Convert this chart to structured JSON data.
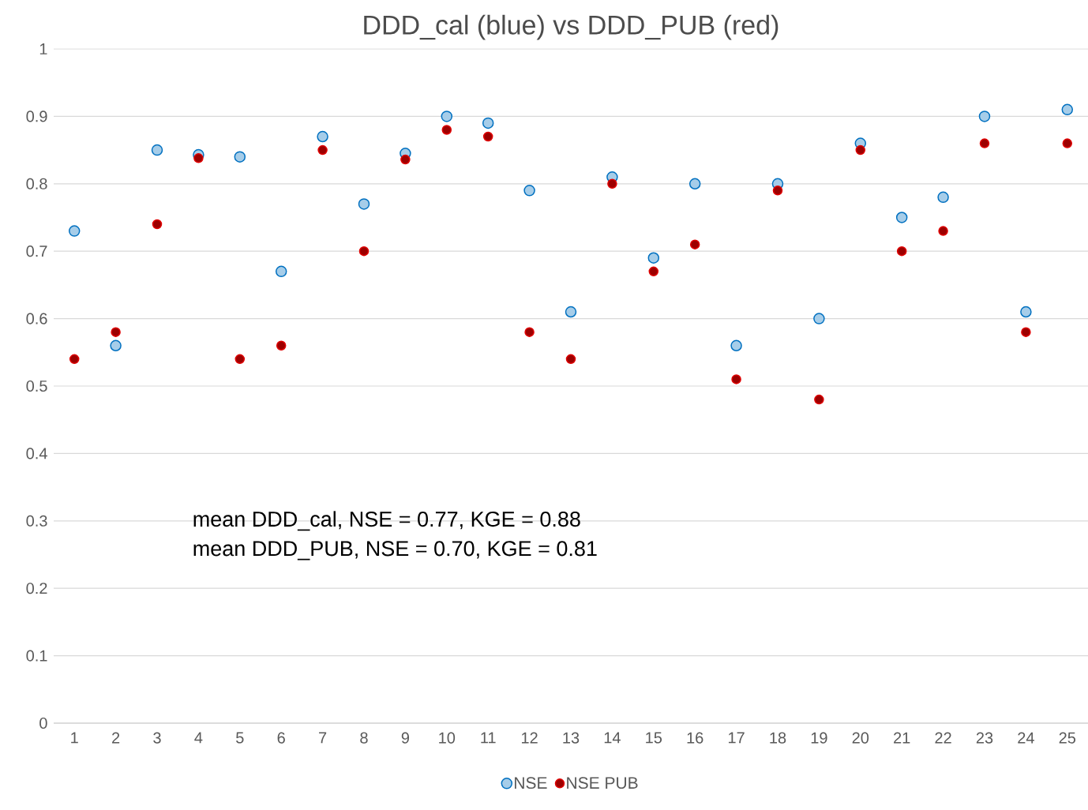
{
  "chart_data": {
    "type": "scatter",
    "title": "DDD_cal (blue) vs DDD_PUB (red)",
    "categories": [
      "1",
      "2",
      "3",
      "4",
      "5",
      "6",
      "7",
      "8",
      "9",
      "10",
      "11",
      "12",
      "13",
      "14",
      "15",
      "16",
      "17",
      "18",
      "19",
      "20",
      "21",
      "22",
      "23",
      "24",
      "25"
    ],
    "series": [
      {
        "name": "NSE",
        "color": "#0070c0",
        "values": [
          0.73,
          0.56,
          0.85,
          0.843,
          0.84,
          0.67,
          0.87,
          0.77,
          0.845,
          0.9,
          0.89,
          0.79,
          0.61,
          0.81,
          0.69,
          0.8,
          0.56,
          0.8,
          0.6,
          0.86,
          0.75,
          0.78,
          0.9,
          0.61,
          0.91
        ]
      },
      {
        "name": "NSE PUB",
        "color": "#e00000",
        "values": [
          0.54,
          0.58,
          0.74,
          0.838,
          0.54,
          0.56,
          0.85,
          0.7,
          0.836,
          0.88,
          0.87,
          0.58,
          0.54,
          0.8,
          0.67,
          0.71,
          0.51,
          0.79,
          0.48,
          0.85,
          0.7,
          0.73,
          0.86,
          0.58,
          0.86
        ]
      }
    ],
    "ylim": [
      0,
      1
    ],
    "yticks": [
      0,
      0.1,
      0.2,
      0.3,
      0.4,
      0.5,
      0.6,
      0.7,
      0.8,
      0.9,
      1
    ],
    "grid": "y",
    "legend": "bottom",
    "marker": "circle",
    "annotations": [
      "mean DDD_cal,    NSE = 0.77, KGE = 0.88",
      "mean DDD_PUB,  NSE = 0.70, KGE = 0.81"
    ]
  }
}
